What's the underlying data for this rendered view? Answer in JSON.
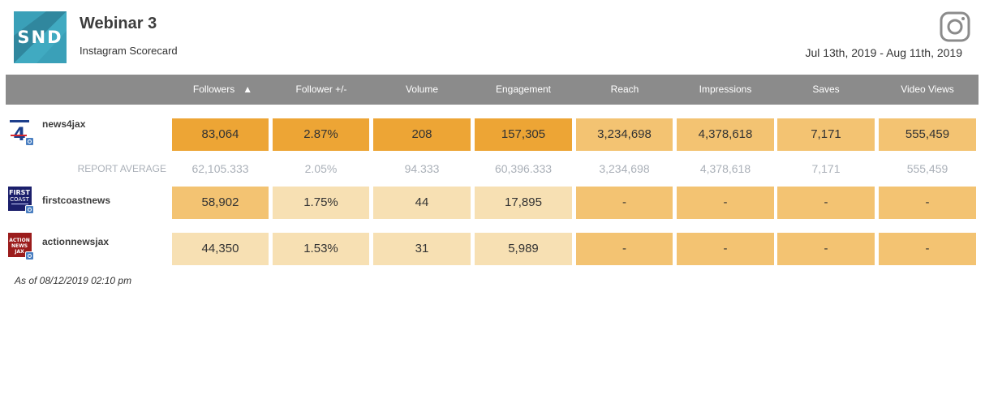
{
  "brand": {
    "logo_text": "SND",
    "logo_color": "#3aa0b8"
  },
  "report": {
    "title": "Webinar 3",
    "subtitle": "Instagram Scorecard",
    "date_range": "Jul 13th, 2019 - Aug 11th, 2019",
    "platform_icon": "instagram-icon"
  },
  "columns": [
    "Followers",
    "Follower +/-",
    "Volume",
    "Engagement",
    "Reach",
    "Impressions",
    "Saves",
    "Video Views"
  ],
  "sort": {
    "column": "Followers",
    "direction": "ascending-arrow"
  },
  "accounts": [
    {
      "name": "news4jax",
      "values": [
        "83,064",
        "2.87%",
        "208",
        "157,305",
        "3,234,698",
        "4,378,618",
        "7,171",
        "555,459"
      ]
    },
    {
      "name": "firstcoastnews",
      "values": [
        "58,902",
        "1.75%",
        "44",
        "17,895",
        "-",
        "-",
        "-",
        "-"
      ]
    },
    {
      "name": "actionnewsjax",
      "values": [
        "44,350",
        "1.53%",
        "31",
        "5,989",
        "-",
        "-",
        "-",
        "-"
      ]
    }
  ],
  "report_average": {
    "label": "REPORT AVERAGE",
    "values": [
      "62,105.333",
      "2.05%",
      "94.333",
      "60,396.333",
      "3,234,698",
      "4,378,618",
      "7,171",
      "555,459"
    ]
  },
  "colors": {
    "header_bar": "#8b8b8b",
    "high": "#eda535",
    "mid": "#f3c372",
    "low": "#f7e0b3",
    "average_text": "#aab0b8"
  },
  "footnote": "As of 08/12/2019 02:10 pm"
}
